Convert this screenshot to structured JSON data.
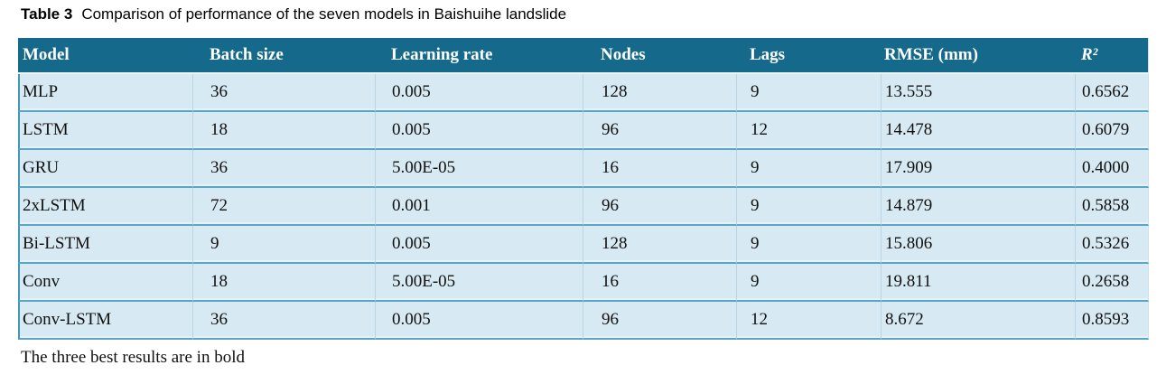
{
  "caption": {
    "label": "Table 3",
    "title": "Comparison of performance of the seven models in Baishuihe landslide"
  },
  "table": {
    "headers": [
      "Model",
      "Batch size",
      "Learning rate",
      "Nodes",
      "Lags",
      "RMSE (mm)",
      "R²"
    ],
    "rows": [
      [
        "MLP",
        "36",
        "0.005",
        "128",
        "9",
        "13.555",
        "0.6562"
      ],
      [
        "LSTM",
        "18",
        "0.005",
        "96",
        "12",
        "14.478",
        "0.6079"
      ],
      [
        "GRU",
        "36",
        "5.00E-05",
        "16",
        "9",
        "17.909",
        "0.4000"
      ],
      [
        "2xLSTM",
        "72",
        "0.001",
        "96",
        "9",
        "14.879",
        "0.5858"
      ],
      [
        "Bi-LSTM",
        "9",
        "0.005",
        "128",
        "9",
        "15.806",
        "0.5326"
      ],
      [
        "Conv",
        "18",
        "5.00E-05",
        "16",
        "9",
        "19.811",
        "0.2658"
      ],
      [
        "Conv-LSTM",
        "36",
        "0.005",
        "96",
        "12",
        "8.672",
        "0.8593"
      ]
    ]
  },
  "footnote": "The three best results are in bold",
  "colors": {
    "header_bg": "#15698b",
    "header_text": "#ffffff",
    "row_bg": "#d7e9f2",
    "row_divider": "#5aa6c8",
    "column_line": "#b9d4e2",
    "table_left_border": "#4597b6",
    "body_text": "#111111"
  }
}
